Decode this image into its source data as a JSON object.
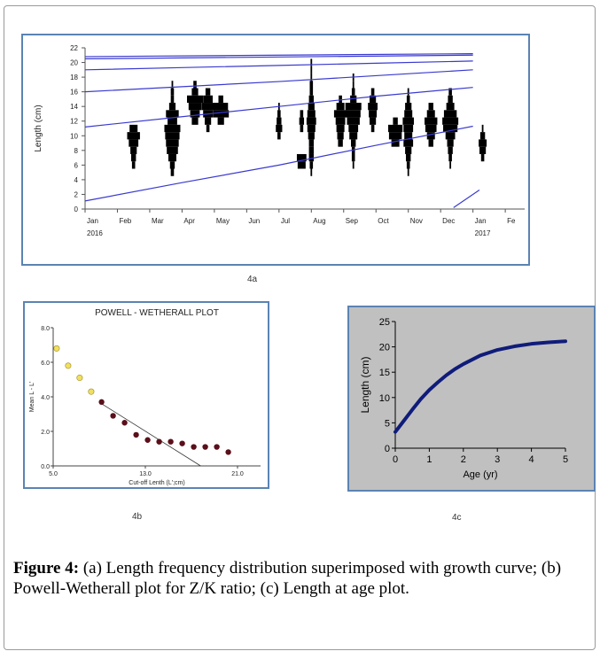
{
  "labels": {
    "a": "4a",
    "b": "4b",
    "c": "4c"
  },
  "caption": {
    "figure_label": "Figure 4:",
    "text": "(a) Length frequency distribution superimposed with growth curve; (b) Powell-Wetherall plot for Z/K ratio; (c) Length at age plot."
  },
  "chart_data": [
    {
      "type": "bar",
      "subtype": "length-frequency histogram with growth curves",
      "title": "",
      "xlabel": "",
      "ylabel": "Length (cm)",
      "ylim": [
        0,
        22
      ],
      "y_ticks": [
        "0",
        "2",
        "4",
        "6",
        "8",
        "10",
        "12",
        "14",
        "16",
        "18",
        "20",
        "22"
      ],
      "x_ticks": [
        "Jan",
        "Feb",
        "Mar",
        "Apr",
        "May",
        "Jun",
        "Jul",
        "Aug",
        "Sep",
        "Oct",
        "Nov",
        "Dec",
        "Jan",
        "Fe"
      ],
      "x_subtitles": {
        "start_year": "2016",
        "end_year": "2017"
      },
      "samples": [
        {
          "month": 1.5,
          "bins": [
            [
              6,
              0.2
            ],
            [
              7,
              0.3
            ],
            [
              8,
              0.4
            ],
            [
              9,
              0.6
            ],
            [
              10,
              0.8
            ],
            [
              11,
              0.5
            ]
          ]
        },
        {
          "month": 2.7,
          "bins": [
            [
              5,
              0.2
            ],
            [
              6,
              0.3
            ],
            [
              7,
              0.5
            ],
            [
              8,
              0.7
            ],
            [
              9,
              0.8
            ],
            [
              10,
              0.9
            ],
            [
              11,
              1.0
            ],
            [
              12,
              0.6
            ],
            [
              13,
              0.8
            ],
            [
              14,
              0.4
            ],
            [
              15,
              0.2
            ],
            [
              16,
              0.2
            ],
            [
              17,
              0.1
            ]
          ]
        },
        {
          "month": 3.4,
          "bins": [
            [
              12,
              0.4
            ],
            [
              13,
              0.6
            ],
            [
              14,
              0.8
            ],
            [
              15,
              1.0
            ],
            [
              16,
              0.4
            ],
            [
              17,
              0.2
            ]
          ]
        },
        {
          "month": 3.8,
          "bins": [
            [
              11,
              0.2
            ],
            [
              12,
              0.4
            ],
            [
              13,
              0.6
            ],
            [
              14,
              0.8
            ],
            [
              15,
              0.6
            ],
            [
              16,
              0.3
            ]
          ]
        },
        {
          "month": 4.2,
          "bins": [
            [
              12,
              0.4
            ],
            [
              13,
              1.0
            ],
            [
              14,
              0.9
            ],
            [
              15,
              0.3
            ]
          ]
        },
        {
          "month": 6.0,
          "bins": [
            [
              10,
              0.2
            ],
            [
              11,
              0.4
            ],
            [
              12,
              0.3
            ],
            [
              13,
              0.2
            ],
            [
              14,
              0.1
            ]
          ]
        },
        {
          "month": 6.7,
          "bins": [
            [
              6,
              0.5
            ],
            [
              7,
              0.6
            ],
            [
              11,
              0.2
            ],
            [
              12,
              0.3
            ],
            [
              13,
              0.2
            ]
          ]
        },
        {
          "month": 7.0,
          "bins": [
            [
              5,
              0.1
            ],
            [
              6,
              0.2
            ],
            [
              7,
              0.3
            ],
            [
              8,
              0.3
            ],
            [
              9,
              0.3
            ],
            [
              10,
              0.4
            ],
            [
              11,
              0.5
            ],
            [
              12,
              0.6
            ],
            [
              13,
              0.5
            ],
            [
              14,
              0.4
            ],
            [
              15,
              0.3
            ],
            [
              16,
              0.2
            ],
            [
              17,
              0.2
            ],
            [
              18,
              0.1
            ],
            [
              19,
              0.1
            ],
            [
              20,
              0.1
            ]
          ]
        },
        {
          "month": 7.9,
          "bins": [
            [
              9,
              0.3
            ],
            [
              10,
              0.4
            ],
            [
              11,
              0.5
            ],
            [
              12,
              0.6
            ],
            [
              13,
              0.8
            ],
            [
              14,
              0.5
            ],
            [
              15,
              0.2
            ]
          ]
        },
        {
          "month": 8.3,
          "bins": [
            [
              6,
              0.1
            ],
            [
              7,
              0.2
            ],
            [
              8,
              0.2
            ],
            [
              9,
              0.3
            ],
            [
              10,
              0.5
            ],
            [
              11,
              0.6
            ],
            [
              12,
              0.8
            ],
            [
              13,
              0.9
            ],
            [
              14,
              1.0
            ],
            [
              15,
              0.4
            ],
            [
              16,
              0.2
            ],
            [
              17,
              0.1
            ],
            [
              18,
              0.1
            ]
          ]
        },
        {
          "month": 8.9,
          "bins": [
            [
              11,
              0.2
            ],
            [
              12,
              0.4
            ],
            [
              13,
              0.5
            ],
            [
              14,
              0.6
            ],
            [
              15,
              0.4
            ],
            [
              16,
              0.2
            ]
          ]
        },
        {
          "month": 9.6,
          "bins": [
            [
              9,
              0.5
            ],
            [
              10,
              0.8
            ],
            [
              11,
              0.9
            ],
            [
              12,
              0.3
            ]
          ]
        },
        {
          "month": 10.0,
          "bins": [
            [
              5,
              0.1
            ],
            [
              6,
              0.2
            ],
            [
              7,
              0.3
            ],
            [
              8,
              0.4
            ],
            [
              9,
              0.6
            ],
            [
              10,
              0.5
            ],
            [
              11,
              0.6
            ],
            [
              12,
              0.7
            ],
            [
              13,
              0.5
            ],
            [
              14,
              0.4
            ],
            [
              15,
              0.2
            ],
            [
              16,
              0.1
            ]
          ]
        },
        {
          "month": 10.7,
          "bins": [
            [
              9,
              0.3
            ],
            [
              10,
              0.5
            ],
            [
              11,
              0.7
            ],
            [
              12,
              0.8
            ],
            [
              13,
              0.5
            ],
            [
              14,
              0.3
            ]
          ]
        },
        {
          "month": 11.3,
          "bins": [
            [
              6,
              0.1
            ],
            [
              7,
              0.2
            ],
            [
              8,
              0.3
            ],
            [
              9,
              0.4
            ],
            [
              10,
              0.6
            ],
            [
              11,
              0.9
            ],
            [
              12,
              1.0
            ],
            [
              13,
              0.8
            ],
            [
              14,
              0.5
            ],
            [
              15,
              0.3
            ],
            [
              16,
              0.2
            ]
          ]
        },
        {
          "month": 12.3,
          "bins": [
            [
              7,
              0.2
            ],
            [
              8,
              0.4
            ],
            [
              9,
              0.5
            ],
            [
              10,
              0.3
            ],
            [
              11,
              0.1
            ]
          ]
        }
      ],
      "growth_curves": [
        {
          "points": [
            [
              0,
              1.1
            ],
            [
              3,
              3.6
            ],
            [
              6,
              6.0
            ],
            [
              9,
              8.7
            ],
            [
              12,
              11.3
            ]
          ]
        },
        {
          "points": [
            [
              0,
              11.2
            ],
            [
              3,
              12.6
            ],
            [
              6,
              14.0
            ],
            [
              9,
              15.4
            ],
            [
              12,
              16.6
            ]
          ]
        },
        {
          "points": [
            [
              0,
              16.0
            ],
            [
              3,
              16.7
            ],
            [
              6,
              17.4
            ],
            [
              9,
              18.2
            ],
            [
              12,
              19.0
            ]
          ]
        },
        {
          "points": [
            [
              0,
              19.0
            ],
            [
              3,
              19.3
            ],
            [
              6,
              19.6
            ],
            [
              9,
              19.9
            ],
            [
              12,
              20.2
            ]
          ]
        },
        {
          "points": [
            [
              0,
              20.5
            ],
            [
              12,
              21.0
            ]
          ]
        },
        {
          "points": [
            [
              0,
              20.8
            ],
            [
              12,
              21.2
            ]
          ]
        },
        {
          "points": [
            [
              11.4,
              0.2
            ],
            [
              12.2,
              2.6
            ]
          ]
        }
      ]
    },
    {
      "type": "scatter",
      "title": "POWELL - WETHERALL PLOT",
      "xlabel": "Cut-off Lenth (L';cm)",
      "ylabel": "Mean L - L'",
      "xlim": [
        5.0,
        23.0
      ],
      "ylim": [
        0.0,
        8.0
      ],
      "x_ticks": [
        "5.0",
        "13.0",
        "21.0"
      ],
      "y_ticks": [
        "0.0",
        "2.0",
        "4.0",
        "6.0",
        "8.0"
      ],
      "series": [
        {
          "points": [
            [
              5.3,
              6.8
            ],
            [
              6.3,
              5.8
            ],
            [
              7.3,
              5.1
            ],
            [
              8.3,
              4.3
            ]
          ]
        },
        {
          "points": [
            [
              9.2,
              3.7
            ],
            [
              10.2,
              2.9
            ],
            [
              11.2,
              2.5
            ],
            [
              12.2,
              1.8
            ],
            [
              13.2,
              1.5
            ],
            [
              14.2,
              1.4
            ],
            [
              15.2,
              1.4
            ],
            [
              16.2,
              1.3
            ],
            [
              17.2,
              1.1
            ],
            [
              18.2,
              1.1
            ],
            [
              19.2,
              1.1
            ],
            [
              20.2,
              0.8
            ]
          ]
        }
      ],
      "regression_line": [
        [
          9.2,
          3.6
        ],
        [
          17.8,
          0.0
        ]
      ]
    },
    {
      "type": "line",
      "title": "",
      "xlabel": "Age (yr)",
      "ylabel": "Length (cm)",
      "xlim": [
        0,
        5
      ],
      "ylim": [
        0,
        25
      ],
      "x_ticks": [
        "0",
        "1",
        "2",
        "3",
        "4",
        "5"
      ],
      "y_ticks": [
        "0",
        "5",
        "10",
        "15",
        "20",
        "25"
      ],
      "series": [
        {
          "x": [
            0,
            0.25,
            0.5,
            0.75,
            1,
            1.25,
            1.5,
            1.75,
            2,
            2.5,
            3,
            3.5,
            4,
            4.5,
            5
          ],
          "y": [
            3.2,
            5.4,
            7.6,
            9.7,
            11.5,
            13.0,
            14.4,
            15.6,
            16.6,
            18.3,
            19.4,
            20.1,
            20.6,
            20.9,
            21.1
          ]
        }
      ]
    }
  ]
}
